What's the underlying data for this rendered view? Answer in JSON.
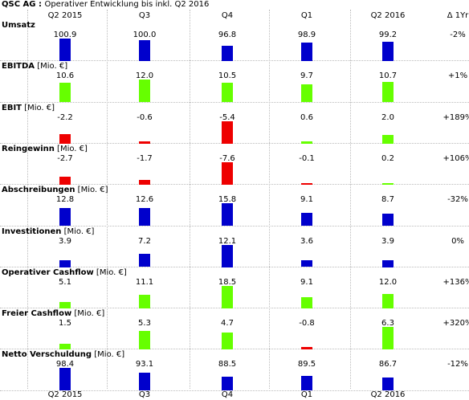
{
  "chart_data": {
    "type": "bar",
    "title": "QSC AG",
    "subtitle": "Operativer Entwicklung bis inkl. Q2 2016",
    "categories": [
      "Q2 2015",
      "Q3",
      "Q4",
      "Q1",
      "Q2 2016"
    ],
    "change_header": "Δ 1Yr",
    "grid": true,
    "colors": {
      "revenue": "#0000cc",
      "positive": "#66ff00",
      "negative": "#ee0000"
    },
    "series": [
      {
        "name": "Umsatz",
        "unit": "[Mio. €]",
        "unit_shown": false,
        "values": [
          100.9,
          100.0,
          96.8,
          98.9,
          99.2
        ],
        "labels": [
          "100.9",
          "100.0",
          "96.8",
          "98.9",
          "99.2"
        ],
        "change": "-2%",
        "color": "#0000cc"
      },
      {
        "name": "EBITDA",
        "unit": "[Mio. €]",
        "unit_shown": true,
        "values": [
          10.6,
          12.0,
          10.5,
          9.7,
          10.7
        ],
        "labels": [
          "10.6",
          "12.0",
          "10.5",
          "9.7",
          "10.7"
        ],
        "change": "+1%",
        "color": "#66ff00"
      },
      {
        "name": "EBIT",
        "unit": "[Mio. €]",
        "unit_shown": true,
        "values": [
          -2.2,
          -0.6,
          -5.4,
          0.6,
          2.0
        ],
        "labels": [
          "-2.2",
          "-0.6",
          "-5.4",
          "0.6",
          "2.0"
        ],
        "change": "+189%",
        "color": "#66ff00"
      },
      {
        "name": "Reingewinn",
        "unit": "[Mio. €]",
        "unit_shown": true,
        "values": [
          -2.7,
          -1.7,
          -7.6,
          -0.1,
          0.2
        ],
        "labels": [
          "-2.7",
          "-1.7",
          "-7.6",
          "-0.1",
          "0.2"
        ],
        "change": "+106%",
        "color": "#66ff00"
      },
      {
        "name": "Abschreibungen",
        "unit": "[Mio. €]",
        "unit_shown": true,
        "values": [
          12.8,
          12.6,
          15.8,
          9.1,
          8.7
        ],
        "labels": [
          "12.8",
          "12.6",
          "15.8",
          "9.1",
          "8.7"
        ],
        "change": "-32%",
        "color": "#0000cc"
      },
      {
        "name": "Investitionen",
        "unit": "[Mio. €]",
        "unit_shown": true,
        "values": [
          3.9,
          7.2,
          12.1,
          3.6,
          3.9
        ],
        "labels": [
          "3.9",
          "7.2",
          "12.1",
          "3.6",
          "3.9"
        ],
        "change": "0%",
        "color": "#0000cc"
      },
      {
        "name": "Operativer Cashflow",
        "unit": "[Mio. €]",
        "unit_shown": true,
        "values": [
          5.1,
          11.1,
          18.5,
          9.1,
          12.0
        ],
        "labels": [
          "5.1",
          "11.1",
          "18.5",
          "9.1",
          "12.0"
        ],
        "change": "+136%",
        "color": "#66ff00"
      },
      {
        "name": "Freier Cashflow",
        "unit": "[Mio. €]",
        "unit_shown": true,
        "values": [
          1.5,
          5.3,
          4.7,
          -0.8,
          6.3
        ],
        "labels": [
          "1.5",
          "5.3",
          "4.7",
          "-0.8",
          "6.3"
        ],
        "change": "+320%",
        "color": "#66ff00"
      },
      {
        "name": "Netto Verschuldung",
        "unit": "[Mio. €]",
        "unit_shown": true,
        "values": [
          98.4,
          93.1,
          88.5,
          89.5,
          86.7
        ],
        "labels": [
          "98.4",
          "93.1",
          "88.5",
          "89.5",
          "86.7"
        ],
        "change": "-12%",
        "color": "#0000cc"
      }
    ]
  }
}
